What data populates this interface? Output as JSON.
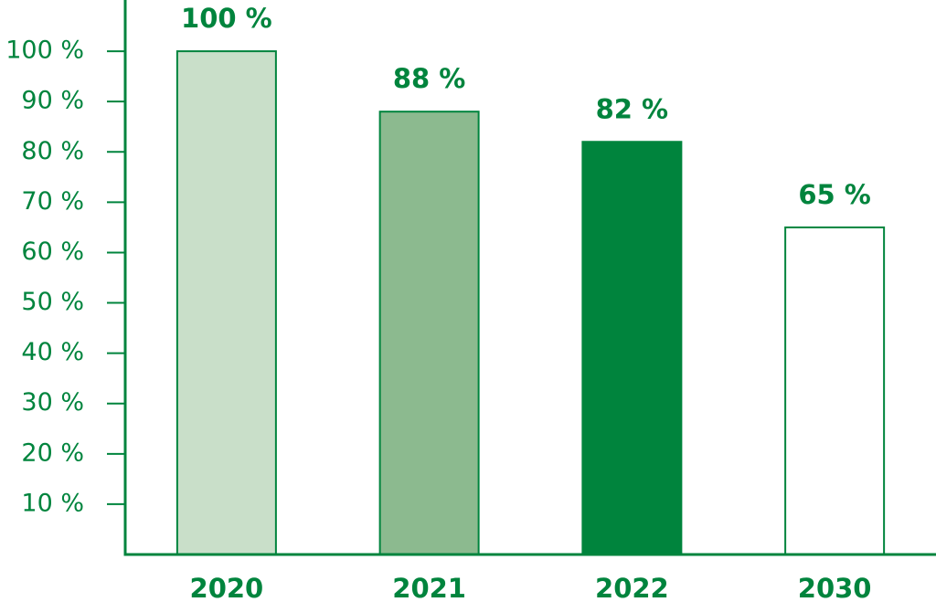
{
  "chart_data": {
    "type": "bar",
    "categories": [
      "2020",
      "2021",
      "2022",
      "2030"
    ],
    "values": [
      100,
      88,
      82,
      65
    ],
    "value_labels": [
      "100 %",
      "88 %",
      "82 %",
      "65 %"
    ],
    "colors": [
      "#c9dfc9",
      "#8cba8f",
      "#00843d",
      "#ffffff"
    ],
    "edge_color": "#00843d",
    "ylim": [
      0,
      110
    ],
    "yticks": [
      {
        "value": 10,
        "label": "10 %"
      },
      {
        "value": 20,
        "label": "20 %"
      },
      {
        "value": 30,
        "label": "30 %"
      },
      {
        "value": 40,
        "label": "40 %"
      },
      {
        "value": 50,
        "label": "50 %"
      },
      {
        "value": 60,
        "label": "60 %"
      },
      {
        "value": 70,
        "label": "70 %"
      },
      {
        "value": 80,
        "label": "80 %"
      },
      {
        "value": 90,
        "label": "90 %"
      },
      {
        "value": 100,
        "label": "100 %"
      }
    ],
    "grid": false
  }
}
